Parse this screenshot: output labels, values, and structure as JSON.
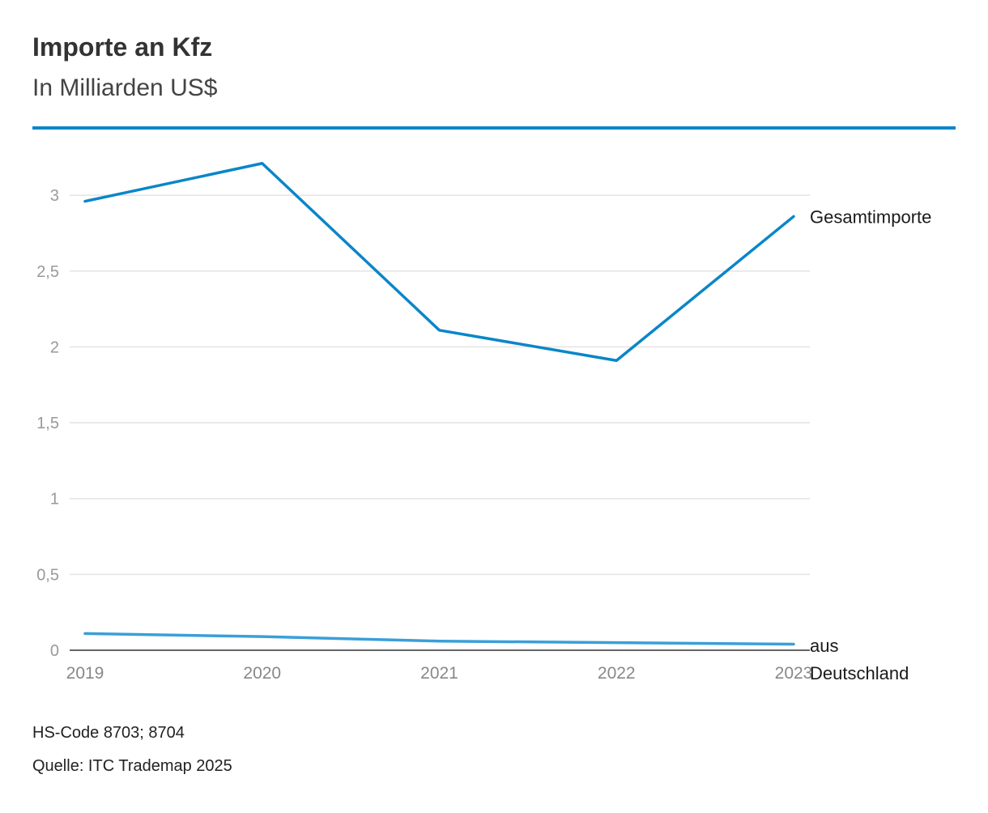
{
  "header": {
    "title": "Importe an Kfz",
    "subtitle": "In Milliarden US$"
  },
  "footer": {
    "hs_code": "HS-Code 8703; 8704",
    "source": "Quelle: ITC Trademap 2025"
  },
  "colors": {
    "accent": "#0a86c8",
    "series_total": "#0a86c8",
    "series_germany": "#3a9fd8",
    "grid": "#e3e3e3",
    "baseline": "#333333"
  },
  "chart_data": {
    "type": "line",
    "title": "Importe an Kfz",
    "subtitle": "In Milliarden US$",
    "x": [
      "2019",
      "2020",
      "2021",
      "2022",
      "2023"
    ],
    "y_ticks": [
      "0",
      "0,5",
      "1",
      "1,5",
      "2",
      "2,5",
      "3"
    ],
    "y_tick_values": [
      0,
      0.5,
      1,
      1.5,
      2,
      2.5,
      3
    ],
    "ylim": [
      0,
      3.3
    ],
    "grid": true,
    "legend": "direct-labels-right",
    "series": [
      {
        "name": "Gesamtimporte",
        "values": [
          2.96,
          3.21,
          2.11,
          1.91,
          2.86
        ]
      },
      {
        "name": "aus Deutschland",
        "label_lines": [
          "aus",
          "Deutschland"
        ],
        "values": [
          0.11,
          0.09,
          0.06,
          0.05,
          0.04
        ]
      }
    ]
  }
}
